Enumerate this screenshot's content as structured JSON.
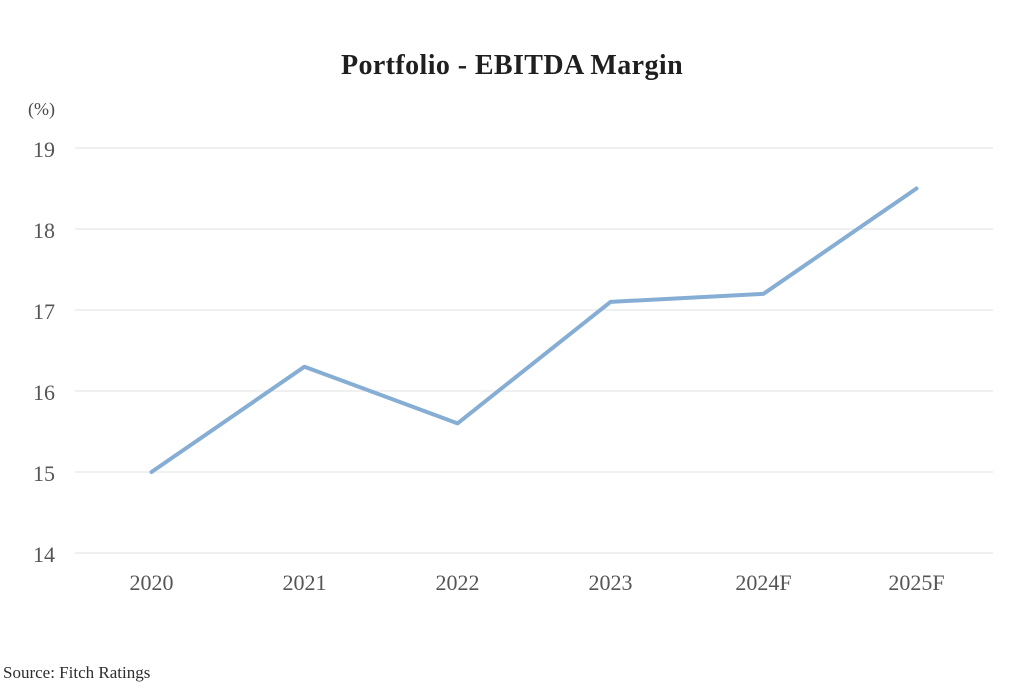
{
  "header": {
    "title": "Portfolio - EBITDA Margin"
  },
  "axis_unit_label": "(%)",
  "footer": {
    "source": "Source: Fitch Ratings"
  },
  "colors": {
    "line": "#86AED4",
    "grid": "#E8E8E8",
    "tick_text": "#555555",
    "title_text": "#1F1F1F",
    "source_text": "#2E2E2E"
  },
  "chart_data": {
    "type": "line",
    "title": "Portfolio - EBITDA Margin",
    "categories": [
      "2020",
      "2021",
      "2022",
      "2023",
      "2024F",
      "2025F"
    ],
    "series": [
      {
        "name": "Portfolio EBITDA Margin",
        "values": [
          15.0,
          16.3,
          15.6,
          17.1,
          17.2,
          18.5
        ]
      }
    ],
    "xlabel": "",
    "ylabel": "(%)",
    "ylim": [
      14,
      19
    ],
    "yticks": [
      14,
      15,
      16,
      17,
      18,
      19
    ],
    "grid": true,
    "legend": false
  }
}
